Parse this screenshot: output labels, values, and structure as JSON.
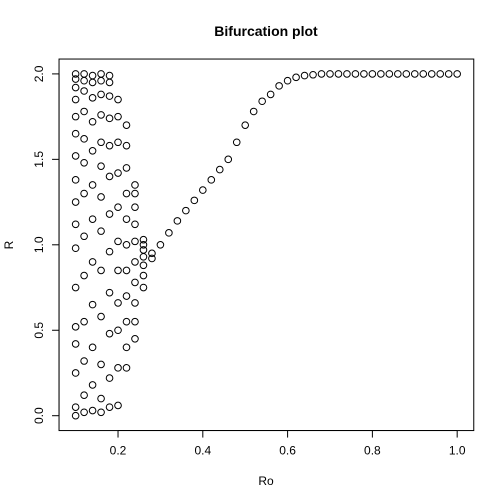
{
  "chart_data": {
    "type": "scatter",
    "title": "Bifurcation plot",
    "xlabel": "Ro",
    "ylabel": "R",
    "xlim": [
      0.1,
      1.0
    ],
    "ylim": [
      0.0,
      2.0
    ],
    "x_ticks": [
      0.2,
      0.4,
      0.6,
      0.8,
      1.0
    ],
    "x_tick_labels": [
      "0.2",
      "0.4",
      "0.6",
      "0.8",
      "1.0"
    ],
    "y_ticks": [
      0.0,
      0.5,
      1.0,
      1.5,
      2.0
    ],
    "y_tick_labels": [
      "0.0",
      "0.5",
      "1.0",
      "1.5",
      "2.0"
    ],
    "grid": false,
    "marker": "open-circle",
    "point_color": "#000000",
    "points": [
      [
        0.1,
        0.0
      ],
      [
        0.1,
        0.05
      ],
      [
        0.1,
        0.25
      ],
      [
        0.1,
        0.42
      ],
      [
        0.1,
        0.52
      ],
      [
        0.1,
        0.75
      ],
      [
        0.1,
        0.98
      ],
      [
        0.1,
        1.12
      ],
      [
        0.1,
        1.25
      ],
      [
        0.1,
        1.38
      ],
      [
        0.1,
        1.52
      ],
      [
        0.1,
        1.65
      ],
      [
        0.1,
        1.75
      ],
      [
        0.1,
        1.85
      ],
      [
        0.1,
        1.92
      ],
      [
        0.1,
        1.97
      ],
      [
        0.1,
        2.0
      ],
      [
        0.12,
        0.02
      ],
      [
        0.12,
        0.12
      ],
      [
        0.12,
        0.32
      ],
      [
        0.12,
        0.55
      ],
      [
        0.12,
        0.82
      ],
      [
        0.12,
        1.05
      ],
      [
        0.12,
        1.3
      ],
      [
        0.12,
        1.48
      ],
      [
        0.12,
        1.62
      ],
      [
        0.12,
        1.78
      ],
      [
        0.12,
        1.9
      ],
      [
        0.12,
        1.96
      ],
      [
        0.12,
        2.0
      ],
      [
        0.14,
        0.03
      ],
      [
        0.14,
        0.18
      ],
      [
        0.14,
        0.4
      ],
      [
        0.14,
        0.65
      ],
      [
        0.14,
        0.9
      ],
      [
        0.14,
        1.15
      ],
      [
        0.14,
        1.35
      ],
      [
        0.14,
        1.55
      ],
      [
        0.14,
        1.72
      ],
      [
        0.14,
        1.86
      ],
      [
        0.14,
        1.95
      ],
      [
        0.14,
        1.99
      ],
      [
        0.16,
        0.02
      ],
      [
        0.16,
        0.1
      ],
      [
        0.16,
        0.3
      ],
      [
        0.16,
        0.58
      ],
      [
        0.16,
        0.85
      ],
      [
        0.16,
        1.08
      ],
      [
        0.16,
        1.28
      ],
      [
        0.16,
        1.46
      ],
      [
        0.16,
        1.6
      ],
      [
        0.16,
        1.76
      ],
      [
        0.16,
        1.88
      ],
      [
        0.16,
        1.96
      ],
      [
        0.16,
        2.0
      ],
      [
        0.18,
        0.05
      ],
      [
        0.18,
        0.22
      ],
      [
        0.18,
        0.48
      ],
      [
        0.18,
        0.72
      ],
      [
        0.18,
        0.96
      ],
      [
        0.18,
        1.18
      ],
      [
        0.18,
        1.4
      ],
      [
        0.18,
        1.58
      ],
      [
        0.18,
        1.74
      ],
      [
        0.18,
        1.87
      ],
      [
        0.18,
        1.95
      ],
      [
        0.18,
        1.99
      ],
      [
        0.2,
        0.06
      ],
      [
        0.2,
        0.28
      ],
      [
        0.2,
        0.5
      ],
      [
        0.2,
        0.66
      ],
      [
        0.2,
        0.85
      ],
      [
        0.2,
        1.02
      ],
      [
        0.2,
        1.22
      ],
      [
        0.2,
        1.42
      ],
      [
        0.2,
        1.6
      ],
      [
        0.2,
        1.75
      ],
      [
        0.2,
        1.85
      ],
      [
        0.22,
        0.28
      ],
      [
        0.22,
        0.4
      ],
      [
        0.22,
        0.55
      ],
      [
        0.22,
        0.7
      ],
      [
        0.22,
        0.85
      ],
      [
        0.22,
        1.0
      ],
      [
        0.22,
        1.15
      ],
      [
        0.22,
        1.3
      ],
      [
        0.22,
        1.45
      ],
      [
        0.22,
        1.58
      ],
      [
        0.22,
        1.7
      ],
      [
        0.24,
        0.45
      ],
      [
        0.24,
        0.55
      ],
      [
        0.24,
        0.66
      ],
      [
        0.24,
        0.78
      ],
      [
        0.24,
        0.9
      ],
      [
        0.24,
        1.02
      ],
      [
        0.24,
        1.12
      ],
      [
        0.24,
        1.22
      ],
      [
        0.24,
        1.3
      ],
      [
        0.24,
        1.35
      ],
      [
        0.26,
        0.75
      ],
      [
        0.26,
        0.82
      ],
      [
        0.26,
        0.88
      ],
      [
        0.26,
        0.93
      ],
      [
        0.26,
        0.97
      ],
      [
        0.26,
        1.0
      ],
      [
        0.26,
        1.03
      ],
      [
        0.28,
        0.92
      ],
      [
        0.28,
        0.95
      ],
      [
        0.3,
        1.0
      ],
      [
        0.32,
        1.07
      ],
      [
        0.34,
        1.14
      ],
      [
        0.36,
        1.2
      ],
      [
        0.38,
        1.26
      ],
      [
        0.4,
        1.32
      ],
      [
        0.42,
        1.38
      ],
      [
        0.44,
        1.44
      ],
      [
        0.46,
        1.5
      ],
      [
        0.48,
        1.6
      ],
      [
        0.5,
        1.7
      ],
      [
        0.52,
        1.78
      ],
      [
        0.54,
        1.84
      ],
      [
        0.56,
        1.88
      ],
      [
        0.58,
        1.93
      ],
      [
        0.6,
        1.96
      ],
      [
        0.62,
        1.98
      ],
      [
        0.64,
        1.99
      ],
      [
        0.66,
        1.995
      ],
      [
        0.68,
        2.0
      ],
      [
        0.7,
        2.0
      ],
      [
        0.72,
        2.0
      ],
      [
        0.74,
        2.0
      ],
      [
        0.76,
        2.0
      ],
      [
        0.78,
        2.0
      ],
      [
        0.8,
        2.0
      ],
      [
        0.82,
        2.0
      ],
      [
        0.84,
        2.0
      ],
      [
        0.86,
        2.0
      ],
      [
        0.88,
        2.0
      ],
      [
        0.9,
        2.0
      ],
      [
        0.92,
        2.0
      ],
      [
        0.94,
        2.0
      ],
      [
        0.96,
        2.0
      ],
      [
        0.98,
        2.0
      ],
      [
        1.0,
        2.0
      ]
    ]
  }
}
